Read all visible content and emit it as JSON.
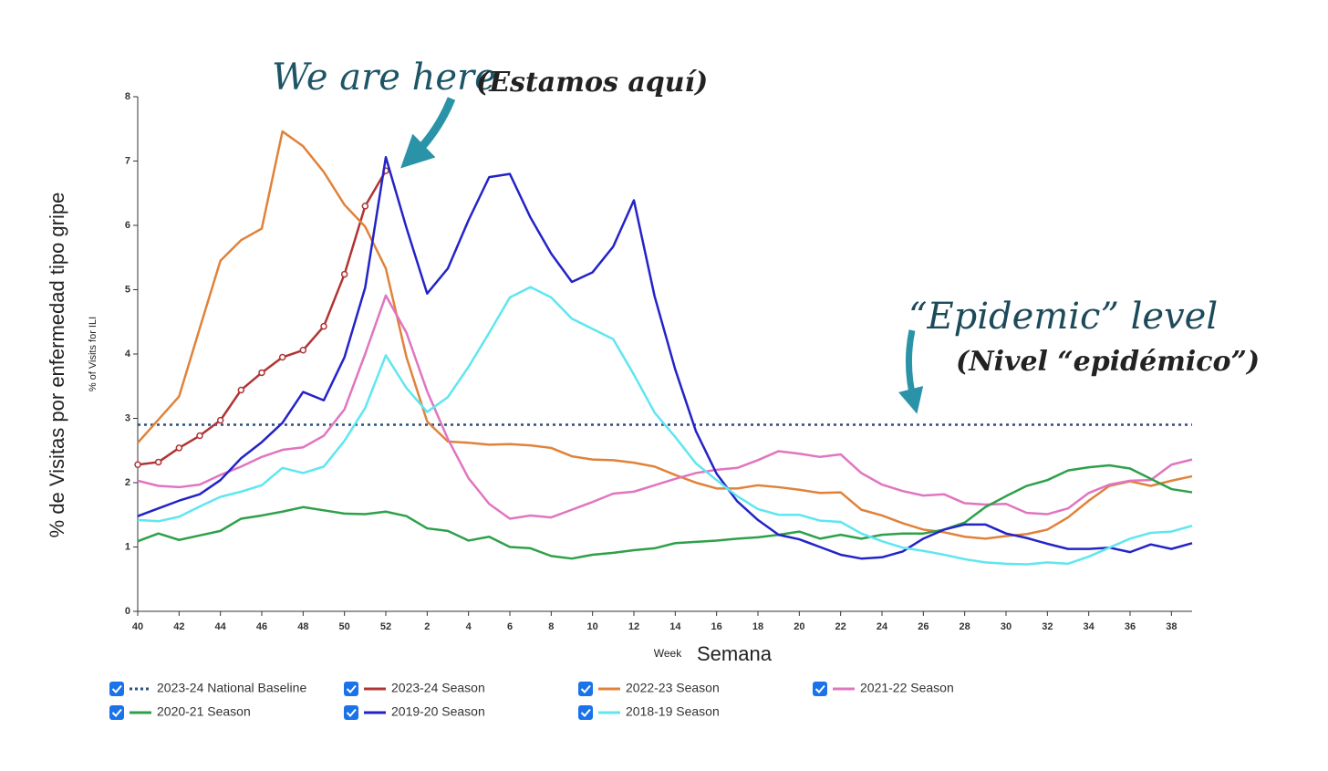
{
  "chart_data": {
    "type": "line",
    "y_label": "% of Visits for ILI",
    "y_label_es": "% de Visitas por enfermedad tipo gripe",
    "x_label": "Week",
    "x_label_es": "Semana",
    "annotations": [
      "We are here",
      "(Estamos aquí)",
      "“Epidemic” level",
      "(Nivel “epidémico”)"
    ],
    "categories": [
      "40",
      null,
      "42",
      null,
      "44",
      null,
      "46",
      null,
      "48",
      null,
      "50",
      null,
      "52",
      null,
      "2",
      null,
      "4",
      null,
      "6",
      null,
      "8",
      null,
      "10",
      null,
      "12",
      null,
      "14",
      null,
      "16",
      null,
      "18",
      null,
      "20",
      null,
      "22",
      null,
      "24",
      null,
      "26",
      null,
      "28",
      null,
      "30",
      null,
      "32",
      null,
      "34",
      null,
      "36",
      null,
      "38",
      null
    ],
    "ylim": [
      0,
      8
    ],
    "yticks": [
      0,
      1,
      2,
      3,
      4,
      5,
      6,
      7,
      8
    ],
    "series": [
      {
        "name": "2023-24 National Baseline",
        "color": "#2b4f7e",
        "dash": true,
        "value": 2.9
      },
      {
        "name": "2023-24 Season",
        "color": "#b03434",
        "markers": true,
        "values": [
          2.28,
          2.32,
          2.54,
          2.73,
          2.97,
          3.44,
          3.71,
          3.95,
          4.06,
          4.43,
          5.24,
          6.3,
          6.85,
          null,
          null,
          null,
          null,
          null,
          null,
          null,
          null,
          null,
          null,
          null,
          null,
          null,
          null,
          null,
          null,
          null,
          null,
          null,
          null,
          null,
          null,
          null,
          null,
          null,
          null,
          null,
          null,
          null,
          null,
          null,
          null,
          null,
          null,
          null,
          null,
          null,
          null,
          null
        ]
      },
      {
        "name": "2022-23 Season",
        "color": "#e0823a",
        "values": [
          2.62,
          2.98,
          3.34,
          4.4,
          5.45,
          5.77,
          5.95,
          7.46,
          7.23,
          6.83,
          6.32,
          5.98,
          5.33,
          3.95,
          2.95,
          2.64,
          2.62,
          2.59,
          2.6,
          2.58,
          2.54,
          2.41,
          2.36,
          2.35,
          2.31,
          2.25,
          2.12,
          2.0,
          1.91,
          1.91,
          1.96,
          1.93,
          1.89,
          1.84,
          1.85,
          1.58,
          1.49,
          1.37,
          1.27,
          1.23,
          1.16,
          1.13,
          1.17,
          1.2,
          1.27,
          1.46,
          1.72,
          1.95,
          2.02,
          1.95,
          2.03,
          2.1
        ]
      },
      {
        "name": "2021-22 Season",
        "color": "#e075c0",
        "values": [
          2.03,
          1.95,
          1.93,
          1.97,
          2.12,
          2.25,
          2.4,
          2.51,
          2.55,
          2.73,
          3.14,
          4.0,
          4.91,
          4.33,
          3.42,
          2.68,
          2.07,
          1.67,
          1.44,
          1.49,
          1.46,
          1.58,
          1.7,
          1.83,
          1.86,
          1.96,
          2.06,
          2.15,
          2.2,
          2.23,
          2.35,
          2.49,
          2.45,
          2.4,
          2.44,
          2.15,
          1.97,
          1.87,
          1.8,
          1.82,
          1.68,
          1.66,
          1.67,
          1.53,
          1.51,
          1.6,
          1.84,
          1.97,
          2.03,
          2.04,
          2.28,
          2.36
        ]
      },
      {
        "name": "2020-21 Season",
        "color": "#2ea04a",
        "values": [
          1.09,
          1.21,
          1.11,
          1.18,
          1.25,
          1.44,
          1.49,
          1.55,
          1.62,
          1.57,
          1.52,
          1.51,
          1.55,
          1.48,
          1.29,
          1.25,
          1.1,
          1.16,
          1.0,
          0.98,
          0.86,
          0.82,
          0.88,
          0.91,
          0.95,
          0.98,
          1.06,
          1.08,
          1.1,
          1.13,
          1.15,
          1.19,
          1.24,
          1.13,
          1.19,
          1.13,
          1.19,
          1.21,
          1.21,
          1.27,
          1.38,
          1.62,
          1.79,
          1.95,
          2.04,
          2.19,
          2.24,
          2.27,
          2.22,
          2.06,
          1.9,
          1.85
        ]
      },
      {
        "name": "2019-20 Season",
        "color": "#2323c8",
        "values": [
          1.48,
          1.6,
          1.72,
          1.82,
          2.04,
          2.38,
          2.63,
          2.93,
          3.41,
          3.28,
          3.95,
          5.03,
          7.06,
          5.96,
          4.94,
          5.33,
          6.08,
          6.75,
          6.8,
          6.12,
          5.56,
          5.12,
          5.27,
          5.67,
          6.39,
          4.9,
          3.76,
          2.8,
          2.14,
          1.71,
          1.42,
          1.19,
          1.12,
          1.0,
          0.88,
          0.82,
          0.84,
          0.93,
          1.13,
          1.27,
          1.35,
          1.35,
          1.21,
          1.14,
          1.05,
          0.97,
          0.97,
          0.99,
          0.92,
          1.04,
          0.97,
          1.06
        ]
      },
      {
        "name": "2018-19 Season",
        "color": "#5fe6f0",
        "values": [
          1.42,
          1.4,
          1.47,
          1.63,
          1.78,
          1.86,
          1.96,
          2.23,
          2.15,
          2.25,
          2.65,
          3.16,
          3.98,
          3.47,
          3.1,
          3.33,
          3.8,
          4.33,
          4.88,
          5.04,
          4.88,
          4.55,
          4.39,
          4.23,
          3.68,
          3.09,
          2.71,
          2.3,
          2.04,
          1.79,
          1.59,
          1.5,
          1.5,
          1.41,
          1.39,
          1.21,
          1.09,
          0.99,
          0.94,
          0.88,
          0.81,
          0.76,
          0.74,
          0.73,
          0.76,
          0.74,
          0.85,
          0.99,
          1.13,
          1.22,
          1.24,
          1.33
        ]
      }
    ]
  }
}
